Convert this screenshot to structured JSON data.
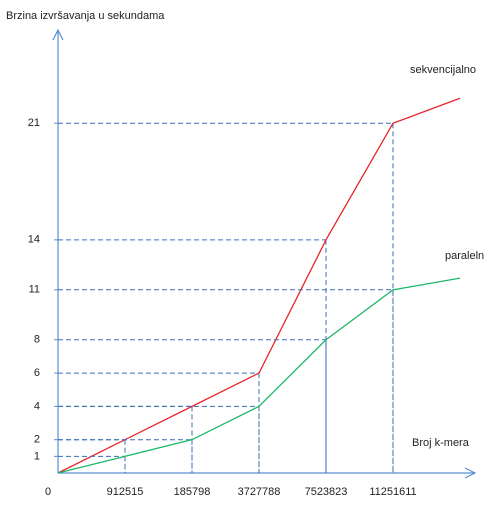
{
  "chart_data": {
    "type": "line",
    "y_label": "Brzina izvršavanja u sekundama",
    "x_label": "Broj k-mera",
    "categories": [
      "0",
      "912515",
      "185798",
      "3727788",
      "7523823",
      "11251611",
      null
    ],
    "series": [
      {
        "name": "sekvencijalno",
        "color": "#e8262c",
        "values": [
          0,
          2,
          4,
          6,
          14,
          21,
          22.5
        ]
      },
      {
        "name": "paralelno",
        "color": "#1fb86a",
        "values": [
          0,
          1,
          2,
          4,
          8,
          11,
          11.7
        ]
      }
    ],
    "ylim": [
      0,
      26.6
    ],
    "yticks": [
      1,
      2,
      4,
      6,
      8,
      11,
      14,
      21
    ],
    "guides": true
  }
}
